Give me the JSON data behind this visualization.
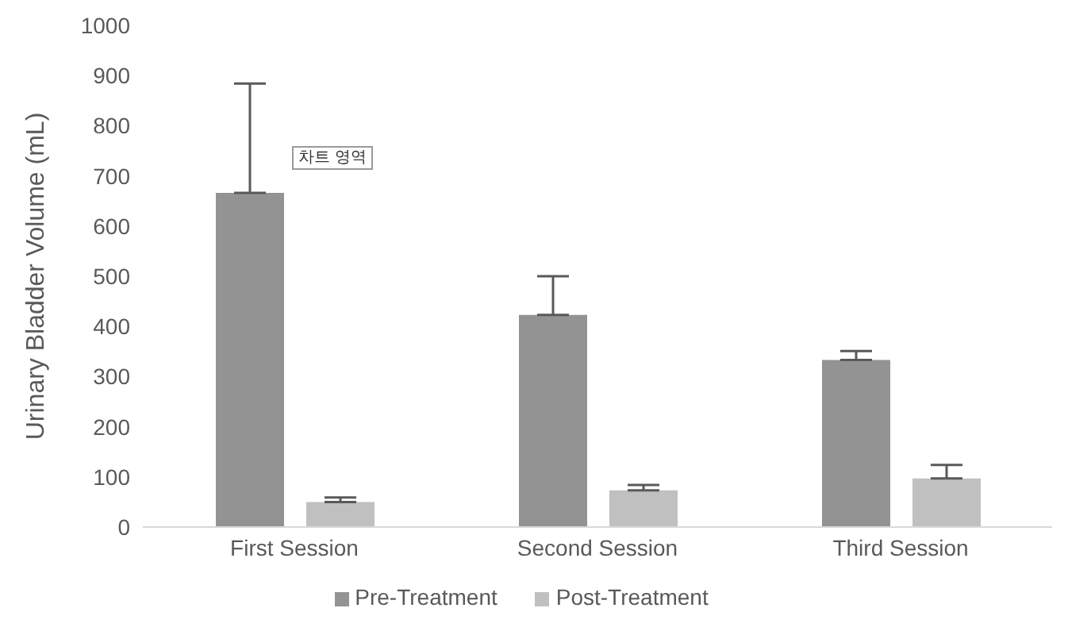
{
  "chart_data": {
    "type": "bar",
    "ylabel": "Urinary Bladder Volume (mL)",
    "categories": [
      "First Session",
      "Second Session",
      "Third Session"
    ],
    "series": [
      {
        "name": "Pre-Treatment",
        "color": "#939393",
        "values": [
          666,
          423,
          333
        ],
        "errors": [
          [
            666,
            884
          ],
          [
            423,
            500
          ],
          [
            333,
            351
          ]
        ]
      },
      {
        "name": "Post-Treatment",
        "color": "#c0c0c0",
        "values": [
          50,
          73,
          97
        ],
        "errors": [
          [
            50,
            59
          ],
          [
            73,
            84
          ],
          [
            97,
            124
          ]
        ]
      }
    ],
    "ylim": [
      0,
      1000
    ],
    "yticks": [
      0,
      100,
      200,
      300,
      400,
      500,
      600,
      700,
      800,
      900,
      1000
    ],
    "grid": false,
    "legend": "bottom",
    "annotations": [
      "차트 영역"
    ]
  }
}
